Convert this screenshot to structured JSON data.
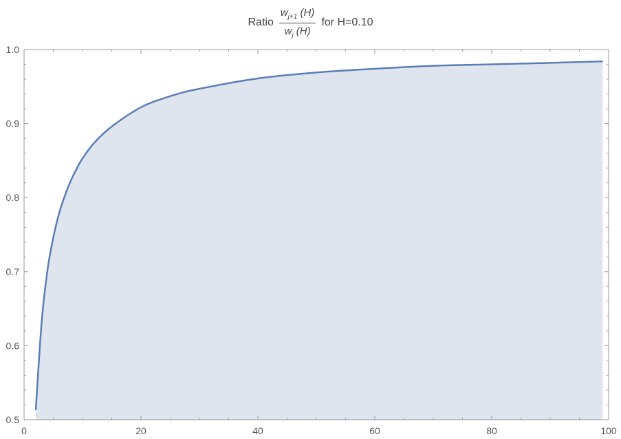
{
  "chart_data": {
    "type": "area",
    "title": {
      "prefix": "Ratio",
      "numerator": "w",
      "numerator_sub": "j+1",
      "numerator_arg": "(H)",
      "denominator": "w",
      "denominator_sub": "j",
      "denominator_arg": "(H)",
      "suffix": "for H=0.10"
    },
    "xlabel": "",
    "ylabel": "",
    "xlim": [
      0,
      100
    ],
    "ylim": [
      0.5,
      1.0
    ],
    "x_ticks": [
      0,
      20,
      40,
      60,
      80,
      100
    ],
    "y_ticks": [
      0.5,
      0.6,
      0.7,
      0.8,
      0.9,
      1.0
    ],
    "y_tick_labels": [
      "0.5",
      "0.6",
      "0.7",
      "0.8",
      "0.9",
      "1.0"
    ],
    "fill_baseline": 0.5,
    "grid": false,
    "series": [
      {
        "x": [
          2,
          3,
          4,
          5,
          6,
          7,
          8,
          9,
          10,
          12,
          15,
          20,
          25,
          30,
          40,
          50,
          60,
          70,
          80,
          90,
          99
        ],
        "values": [
          0.513,
          0.631,
          0.702,
          0.746,
          0.779,
          0.803,
          0.823,
          0.839,
          0.853,
          0.874,
          0.896,
          0.922,
          0.937,
          0.947,
          0.961,
          0.969,
          0.974,
          0.978,
          0.98,
          0.982,
          0.984
        ]
      }
    ],
    "colors": {
      "line": "#5b7db5",
      "fill": "#dfe5ef",
      "axis": "#9a9a9a"
    }
  }
}
